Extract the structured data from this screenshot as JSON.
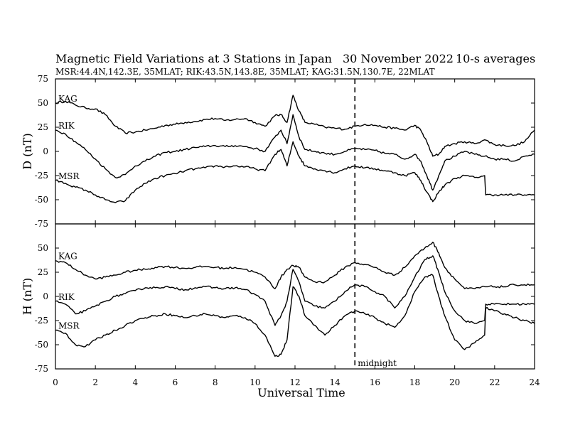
{
  "header": {
    "title": "Magnetic Field Variations at 3 Stations in Japan",
    "date": "30 November 2022",
    "averaging": "10-s averages",
    "stations_line": "MSR:44.4N,142.3E, 35MLAT;  RIK:43.5N,143.8E, 35MLAT;  KAG:31.5N,130.7E, 22MLAT"
  },
  "chart_data": {
    "type": "line",
    "xlabel": "Universal Time",
    "xlim": [
      0,
      24
    ],
    "x_ticks": [
      0,
      2,
      4,
      6,
      8,
      10,
      12,
      14,
      16,
      18,
      20,
      22,
      24
    ],
    "annotations": [
      {
        "x": 15,
        "style": "dashed",
        "label": "midnight"
      }
    ],
    "panels": [
      {
        "ylabel": "D (nT)",
        "ylim": [
          -75,
          75
        ],
        "y_ticks": [
          75,
          50,
          25,
          0,
          -25,
          -50,
          -75
        ],
        "series": [
          {
            "name": "KAG",
            "x": [
              0,
              0.5,
              1,
              1.5,
              2,
              2.5,
              3,
              3.5,
              4,
              4.5,
              5,
              5.5,
              6,
              6.5,
              7,
              7.5,
              8,
              8.5,
              9,
              9.5,
              10,
              10.5,
              11,
              11.3,
              11.6,
              11.9,
              12.2,
              12.5,
              13,
              13.5,
              14,
              14.5,
              15,
              15.5,
              16,
              16.5,
              17,
              17.5,
              18,
              18.3,
              18.6,
              18.9,
              19.2,
              19.5,
              20,
              20.5,
              21,
              21.5,
              22,
              22.5,
              23,
              23.5,
              24
            ],
            "values": [
              50,
              52,
              48,
              45,
              44,
              38,
              26,
              19,
              20,
              22,
              24,
              27,
              28,
              30,
              31,
              33,
              34,
              32,
              33,
              34,
              30,
              26,
              37,
              38,
              30,
              58,
              42,
              30,
              28,
              25,
              24,
              23,
              26,
              28,
              27,
              25,
              24,
              22,
              27,
              22,
              10,
              -5,
              -3,
              5,
              8,
              10,
              8,
              12,
              7,
              6,
              6,
              10,
              22
            ]
          },
          {
            "name": "RIK",
            "x": [
              0,
              0.5,
              1,
              1.5,
              2,
              2.5,
              3,
              3.5,
              4,
              4.5,
              5,
              5.5,
              6,
              6.5,
              7,
              7.5,
              8,
              8.5,
              9,
              9.5,
              10,
              10.5,
              11,
              11.3,
              11.6,
              11.9,
              12.2,
              12.5,
              13,
              13.5,
              14,
              14.5,
              15,
              15.5,
              16,
              16.5,
              17,
              17.5,
              18,
              18.3,
              18.6,
              18.9,
              19.2,
              19.5,
              20,
              20.5,
              21,
              21.5,
              22,
              22.5,
              23,
              23.5,
              24
            ],
            "values": [
              22,
              18,
              10,
              2,
              -8,
              -18,
              -27,
              -24,
              -15,
              -10,
              -5,
              -1,
              0,
              2,
              4,
              5,
              6,
              5,
              6,
              5,
              3,
              0,
              15,
              22,
              8,
              38,
              15,
              2,
              0,
              -2,
              -3,
              0,
              3,
              2,
              1,
              -2,
              -3,
              -8,
              -3,
              -10,
              -25,
              -40,
              -25,
              -10,
              -5,
              0,
              -3,
              -5,
              -8,
              -8,
              -10,
              -5,
              -3
            ]
          },
          {
            "name": "MSR",
            "x": [
              0,
              0.5,
              1,
              1.5,
              2,
              2.5,
              3,
              3.5,
              4,
              4.5,
              5,
              5.5,
              6,
              6.5,
              7,
              7.5,
              8,
              8.5,
              9,
              9.5,
              10,
              10.5,
              11,
              11.3,
              11.6,
              11.9,
              12.2,
              12.5,
              13,
              13.5,
              14,
              14.5,
              15,
              15.5,
              16,
              16.5,
              17,
              17.5,
              18,
              18.3,
              18.6,
              18.9,
              19.2,
              19.5,
              20,
              20.5,
              21,
              21.5,
              21.55,
              22,
              22.5,
              23,
              23.5,
              24
            ],
            "values": [
              -30,
              -33,
              -37,
              -40,
              -45,
              -50,
              -53,
              -51,
              -40,
              -33,
              -28,
              -25,
              -23,
              -20,
              -18,
              -17,
              -15,
              -16,
              -15,
              -16,
              -18,
              -20,
              -3,
              2,
              -15,
              10,
              -5,
              -15,
              -18,
              -20,
              -22,
              -18,
              -15,
              -17,
              -18,
              -20,
              -22,
              -25,
              -22,
              -30,
              -42,
              -52,
              -42,
              -35,
              -28,
              -25,
              -27,
              -25,
              -45,
              -45,
              -45,
              -45,
              -45,
              -45
            ]
          }
        ]
      },
      {
        "ylabel": "H (nT)",
        "ylim": [
          -75,
          75
        ],
        "y_ticks": [
          75,
          50,
          25,
          0,
          -25,
          -50,
          -75
        ],
        "series": [
          {
            "name": "KAG",
            "x": [
              0,
              0.5,
              1,
              1.5,
              2,
              2.5,
              3,
              3.5,
              4,
              4.5,
              5,
              5.5,
              6,
              6.5,
              7,
              7.5,
              8,
              8.5,
              9,
              9.5,
              10,
              10.5,
              11,
              11.3,
              11.6,
              11.9,
              12.2,
              12.5,
              13,
              13.5,
              14,
              14.5,
              15,
              15.5,
              16,
              16.5,
              17,
              17.5,
              18,
              18.5,
              18.9,
              19.2,
              19.5,
              20,
              20.5,
              21,
              21.5,
              22,
              22.5,
              23,
              23.5,
              24
            ],
            "values": [
              37,
              35,
              28,
              22,
              18,
              20,
              22,
              25,
              27,
              28,
              30,
              31,
              30,
              29,
              30,
              31,
              30,
              29,
              30,
              28,
              25,
              20,
              8,
              20,
              28,
              32,
              30,
              20,
              15,
              15,
              22,
              30,
              35,
              33,
              30,
              25,
              22,
              30,
              42,
              50,
              56,
              45,
              30,
              18,
              8,
              8,
              10,
              10,
              10,
              12,
              12,
              12
            ]
          },
          {
            "name": "RIK",
            "x": [
              0,
              0.5,
              1,
              1.5,
              2,
              2.5,
              3,
              3.5,
              4,
              4.5,
              5,
              5.5,
              6,
              6.5,
              7,
              7.5,
              8,
              8.5,
              9,
              9.5,
              10,
              10.5,
              11,
              11.3,
              11.6,
              11.9,
              12.2,
              12.5,
              13,
              13.5,
              14,
              14.5,
              15,
              15.5,
              16,
              16.5,
              17,
              17.5,
              18,
              18.5,
              18.9,
              19.2,
              19.5,
              20,
              20.5,
              21,
              21.5,
              21.55,
              22,
              22.5,
              23,
              23.5,
              24
            ],
            "values": [
              -5,
              -8,
              -18,
              -15,
              -10,
              -5,
              0,
              3,
              6,
              9,
              9,
              10,
              8,
              7,
              9,
              10,
              9,
              8,
              9,
              7,
              2,
              -5,
              -30,
              -20,
              -5,
              28,
              15,
              -5,
              -10,
              -12,
              -5,
              5,
              12,
              10,
              5,
              0,
              -12,
              0,
              20,
              38,
              42,
              25,
              5,
              -15,
              -25,
              -28,
              -25,
              -8,
              -8,
              -8,
              -8,
              -8,
              -8
            ]
          },
          {
            "name": "MSR",
            "x": [
              0,
              0.5,
              1,
              1.5,
              2,
              2.5,
              3,
              3.5,
              4,
              4.5,
              5,
              5.5,
              6,
              6.5,
              7,
              7.5,
              8,
              8.5,
              9,
              9.5,
              10,
              10.5,
              11,
              11.3,
              11.6,
              11.9,
              12.2,
              12.5,
              13,
              13.5,
              14,
              14.5,
              15,
              15.5,
              16,
              16.5,
              17,
              17.5,
              18,
              18.5,
              18.9,
              19.2,
              19.5,
              20,
              20.5,
              21,
              21.5,
              21.55,
              22,
              22.5,
              23,
              23.5,
              24
            ],
            "values": [
              -35,
              -38,
              -50,
              -52,
              -45,
              -40,
              -35,
              -30,
              -25,
              -22,
              -20,
              -18,
              -20,
              -22,
              -20,
              -18,
              -20,
              -22,
              -20,
              -22,
              -28,
              -40,
              -62,
              -60,
              -45,
              10,
              0,
              -20,
              -30,
              -40,
              -30,
              -20,
              -15,
              -18,
              -22,
              -28,
              -32,
              -20,
              5,
              20,
              22,
              0,
              -20,
              -45,
              -55,
              -48,
              -40,
              -12,
              -15,
              -18,
              -22,
              -25,
              -28
            ]
          }
        ]
      }
    ]
  }
}
